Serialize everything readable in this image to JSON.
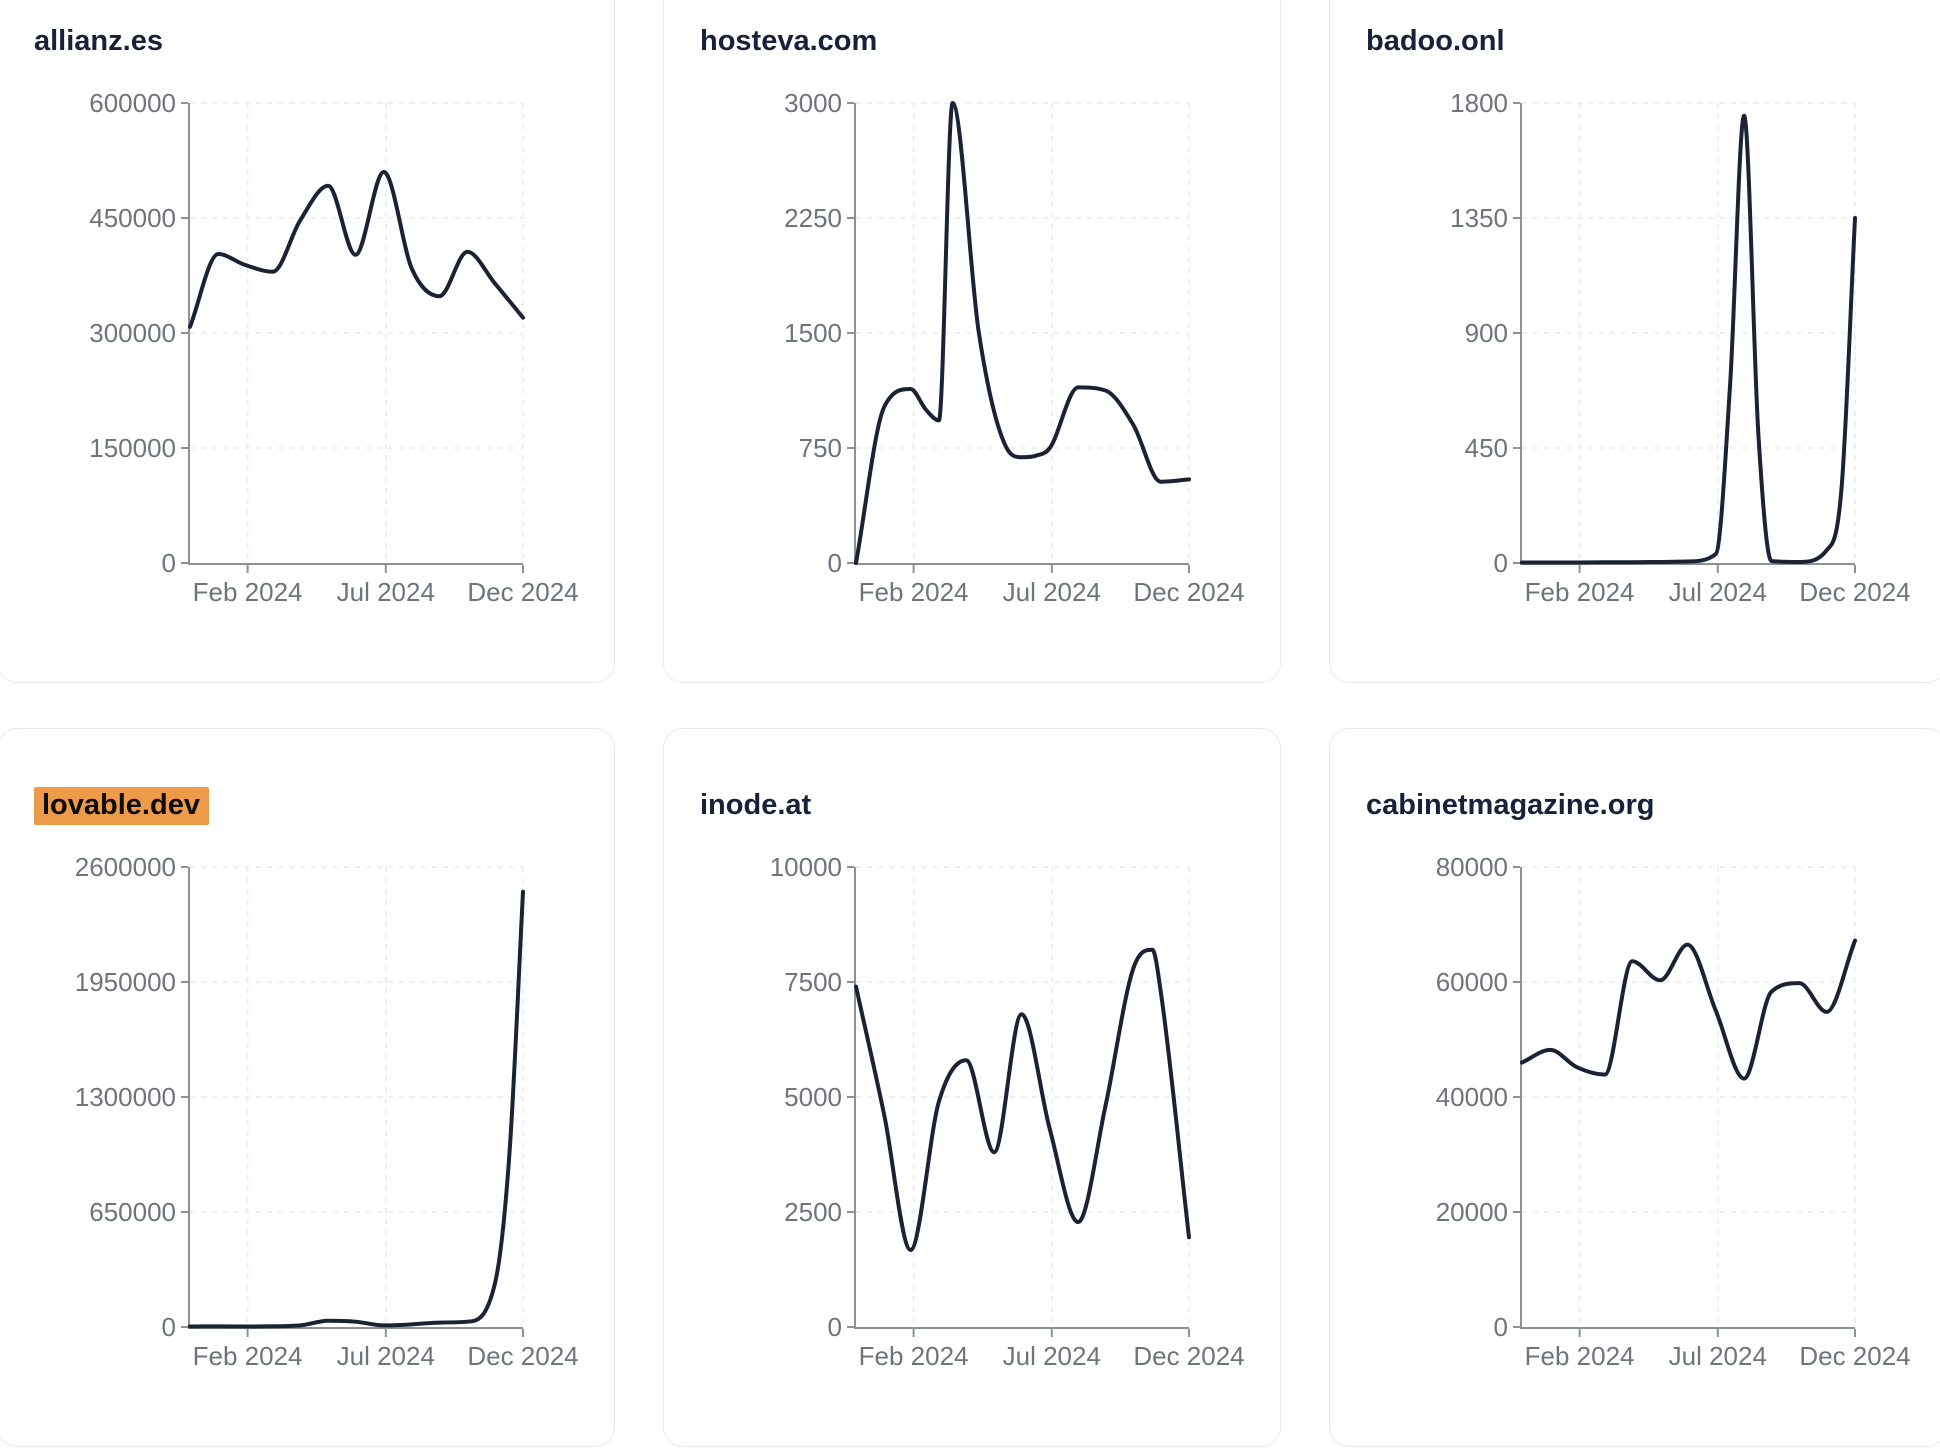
{
  "ui": {
    "background": "#ffffff",
    "card_background": "#ffffff",
    "card_border_color": "#e7eaf2",
    "title_color": "#18213a",
    "highlight_color": "#ee9b49",
    "highlight_text_color": "#0d0d0d",
    "line_color": "#1b2233",
    "grid_color": "#e9ebf0",
    "axis_color": "#8d9196",
    "tick_label_color": "#6f747c"
  },
  "chart_data": [
    {
      "type": "line",
      "title": "allianz.es",
      "title_highlighted": false,
      "legend": "none",
      "grid": "dashed",
      "x_tick_labels": [
        "Feb 2024",
        "Jul 2024",
        "Dec 2024"
      ],
      "x_tick_positions": [
        0.173,
        0.588,
        1
      ],
      "y_ticks": [
        0,
        150000,
        300000,
        450000,
        600000
      ],
      "y_tick_labels": [
        "0",
        "150000",
        "300000",
        "450000",
        "600000"
      ],
      "y_max": 600000,
      "x": [
        0,
        0.085,
        0.164,
        0.249,
        0.331,
        0.415,
        0.497,
        0.582,
        0.667,
        0.749,
        0.833,
        0.915,
        1
      ],
      "y": [
        308000,
        403000,
        389000,
        380000,
        447000,
        492000,
        402000,
        510000,
        383000,
        348000,
        406000,
        365000,
        320000
      ]
    },
    {
      "type": "line",
      "title": "hosteva.com",
      "title_highlighted": false,
      "legend": "none",
      "grid": "dashed",
      "x_tick_labels": [
        "Feb 2024",
        "Jul 2024",
        "Dec 2024"
      ],
      "x_tick_positions": [
        0.173,
        0.588,
        1
      ],
      "y_ticks": [
        0,
        750,
        1500,
        2250,
        3000
      ],
      "y_tick_labels": [
        "0",
        "750",
        "1500",
        "2250",
        "3000"
      ],
      "y_max": 3000,
      "x": [
        0,
        0.085,
        0.164,
        0.21,
        0.249,
        0.29,
        0.369,
        0.45,
        0.497,
        0.541,
        0.582,
        0.667,
        0.749,
        0.833,
        0.915,
        1
      ],
      "y": [
        0,
        1020,
        1135,
        1000,
        930,
        3000,
        1500,
        760,
        690,
        700,
        750,
        1145,
        1125,
        900,
        530,
        545
      ]
    },
    {
      "type": "line",
      "title": "badoo.onl",
      "title_highlighted": false,
      "legend": "none",
      "grid": "dashed",
      "x_tick_labels": [
        "Feb 2024",
        "Jul 2024",
        "Dec 2024"
      ],
      "x_tick_positions": [
        0.173,
        0.588,
        1
      ],
      "y_ticks": [
        0,
        450,
        900,
        1350,
        1800
      ],
      "y_tick_labels": [
        "0",
        "450",
        "900",
        "1350",
        "1800"
      ],
      "y_max": 1800,
      "x": [
        0,
        0.085,
        0.164,
        0.249,
        0.331,
        0.415,
        0.497,
        0.582,
        0.625,
        0.667,
        0.71,
        0.749,
        0.833,
        0.915,
        0.96,
        1
      ],
      "y": [
        2,
        2,
        2,
        3,
        3,
        4,
        6,
        35,
        700,
        1750,
        500,
        8,
        4,
        50,
        300,
        1350
      ]
    },
    {
      "type": "line",
      "title": "lovable.dev",
      "title_highlighted": true,
      "legend": "none",
      "grid": "dashed",
      "x_tick_labels": [
        "Feb 2024",
        "Jul 2024",
        "Dec 2024"
      ],
      "x_tick_positions": [
        0.173,
        0.588,
        1
      ],
      "y_ticks": [
        0,
        650000,
        1300000,
        1950000,
        2600000
      ],
      "y_tick_labels": [
        "0",
        "650000",
        "1300000",
        "1950000",
        "2600000"
      ],
      "y_max": 2600000,
      "x": [
        0,
        0.085,
        0.164,
        0.249,
        0.331,
        0.415,
        0.497,
        0.582,
        0.667,
        0.749,
        0.833,
        0.915,
        0.96,
        1
      ],
      "y": [
        3000,
        3500,
        3000,
        4000,
        9000,
        35000,
        30000,
        9000,
        15000,
        25000,
        30000,
        240000,
        1000000,
        2460000
      ]
    },
    {
      "type": "line",
      "title": "inode.at",
      "title_highlighted": false,
      "legend": "none",
      "grid": "dashed",
      "x_tick_labels": [
        "Feb 2024",
        "Jul 2024",
        "Dec 2024"
      ],
      "x_tick_positions": [
        0.173,
        0.588,
        1
      ],
      "y_ticks": [
        0,
        2500,
        5000,
        7500,
        10000
      ],
      "y_tick_labels": [
        "0",
        "2500",
        "5000",
        "7500",
        "10000"
      ],
      "y_max": 10000,
      "x": [
        0,
        0.085,
        0.164,
        0.249,
        0.331,
        0.415,
        0.497,
        0.582,
        0.667,
        0.749,
        0.833,
        0.89,
        0.915,
        1
      ],
      "y": [
        7400,
        4600,
        1675,
        4900,
        5800,
        3800,
        6800,
        4300,
        2280,
        4800,
        7800,
        8200,
        7300,
        1950
      ]
    },
    {
      "type": "line",
      "title": "cabinetmagazine.org",
      "title_highlighted": false,
      "legend": "none",
      "grid": "dashed",
      "x_tick_labels": [
        "Feb 2024",
        "Jul 2024",
        "Dec 2024"
      ],
      "x_tick_positions": [
        0.173,
        0.588,
        1
      ],
      "y_ticks": [
        0,
        20000,
        40000,
        60000,
        80000
      ],
      "y_tick_labels": [
        "0",
        "20000",
        "40000",
        "60000",
        "80000"
      ],
      "y_max": 80000,
      "x": [
        0,
        0.085,
        0.164,
        0.249,
        0.331,
        0.415,
        0.497,
        0.582,
        0.667,
        0.749,
        0.833,
        0.915,
        1
      ],
      "y": [
        46000,
        48200,
        45200,
        43900,
        63600,
        60300,
        66500,
        55000,
        43200,
        58300,
        59800,
        54800,
        67200
      ]
    }
  ]
}
